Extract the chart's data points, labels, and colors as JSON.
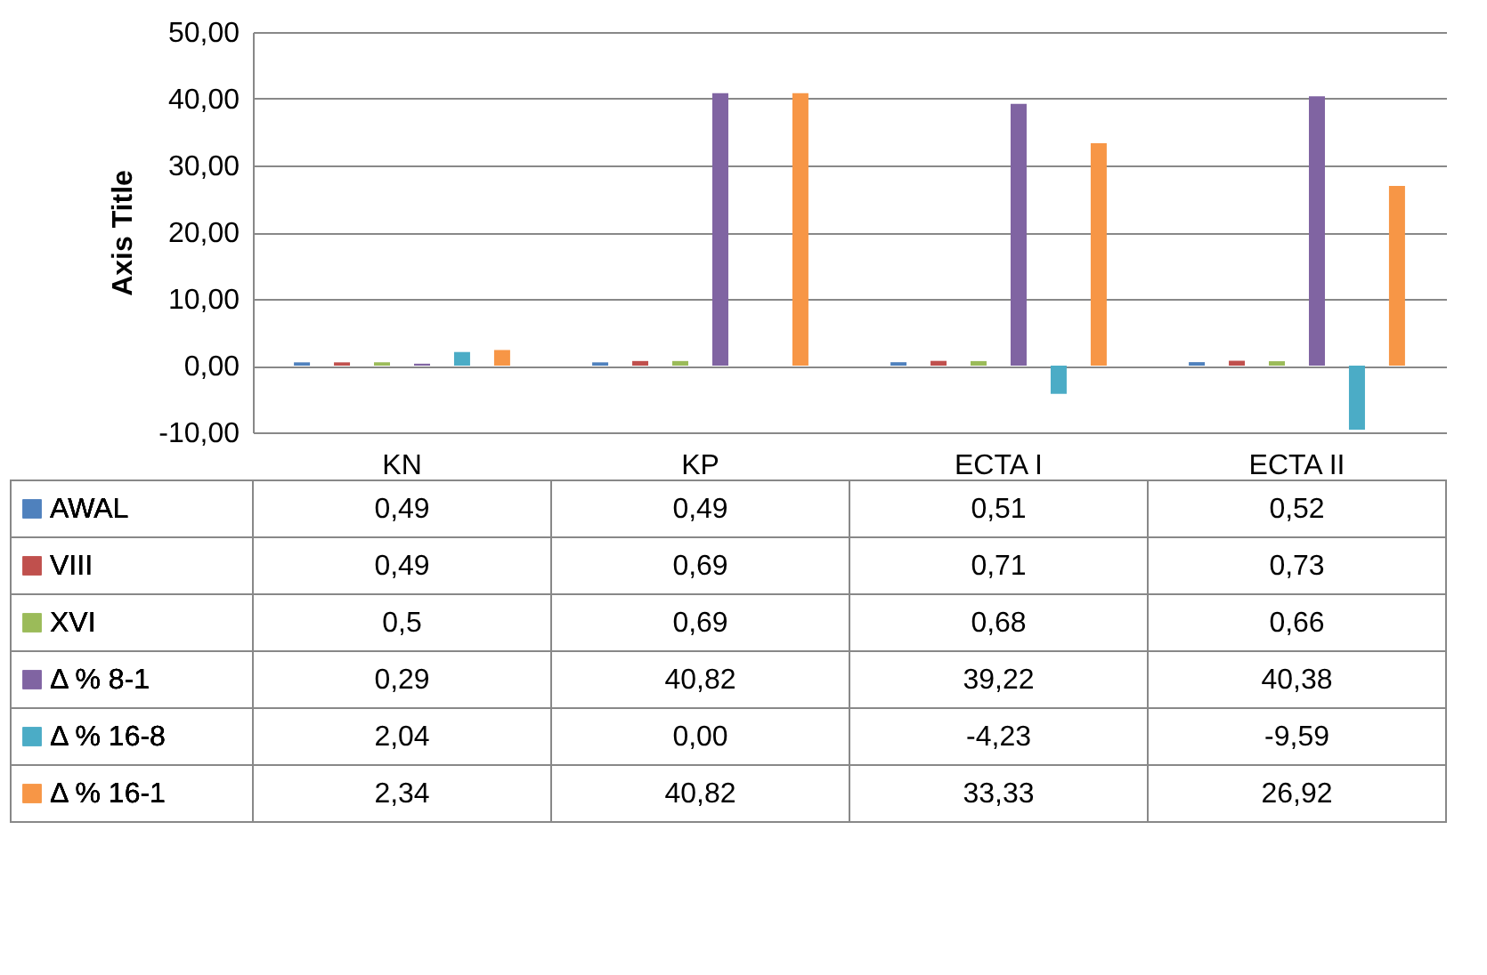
{
  "chart_data": {
    "type": "bar",
    "ylabel": "Axis Title",
    "categories": [
      "KN",
      "KP",
      "ECTA I",
      "ECTA II"
    ],
    "series": [
      {
        "name": "AWAL",
        "color": "#4f81bd",
        "values": [
          0.49,
          0.49,
          0.51,
          0.52
        ],
        "value_labels": [
          "0,49",
          "0,49",
          "0,51",
          "0,52"
        ]
      },
      {
        "name": "VIII",
        "color": "#c0504d",
        "values": [
          0.49,
          0.69,
          0.71,
          0.73
        ],
        "value_labels": [
          "0,49",
          "0,69",
          "0,71",
          "0,73"
        ]
      },
      {
        "name": "XVI",
        "color": "#9bbb59",
        "values": [
          0.5,
          0.69,
          0.68,
          0.66
        ],
        "value_labels": [
          "0,5",
          "0,69",
          "0,68",
          "0,66"
        ]
      },
      {
        "name": "Δ % 8-1",
        "color": "#8064a2",
        "values": [
          0.29,
          40.82,
          39.22,
          40.38
        ],
        "value_labels": [
          "0,29",
          "40,82",
          "39,22",
          "40,38"
        ]
      },
      {
        "name": "Δ % 16-8",
        "color": "#4bacc6",
        "values": [
          2.04,
          0,
          -4.23,
          -9.59
        ],
        "value_labels": [
          "2,04",
          "0,00",
          "-4,23",
          "-9,59"
        ]
      },
      {
        "name": "Δ % 16-1",
        "color": "#f79646",
        "values": [
          2.34,
          40.82,
          33.33,
          26.92
        ],
        "value_labels": [
          "2,34",
          "40,82",
          "33,33",
          "26,92"
        ]
      }
    ],
    "ylim": [
      -10,
      50
    ],
    "yticks": [
      {
        "value": -10,
        "label": "-10,00"
      },
      {
        "value": 0,
        "label": "0,00"
      },
      {
        "value": 10,
        "label": "10,00"
      },
      {
        "value": 20,
        "label": "20,00"
      },
      {
        "value": 30,
        "label": "30,00"
      },
      {
        "value": 40,
        "label": "40,00"
      },
      {
        "value": 50,
        "label": "50,00"
      }
    ],
    "grid": "y",
    "legend": "bottom left"
  }
}
